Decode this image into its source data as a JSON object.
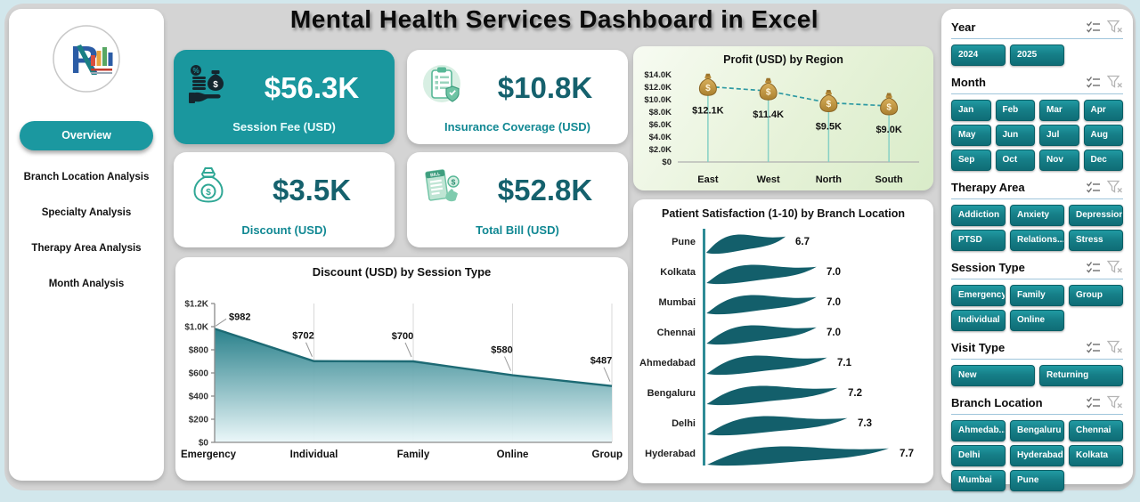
{
  "title": "Mental Health Services Dashboard in Excel",
  "sidebar": {
    "logo": "rk-analytics-logo",
    "nav": [
      {
        "label": "Overview",
        "active": true
      },
      {
        "label": "Branch Location Analysis",
        "active": false
      },
      {
        "label": "Specialty Analysis",
        "active": false
      },
      {
        "label": "Therapy Area Analysis",
        "active": false
      },
      {
        "label": "Month Analysis",
        "active": false
      }
    ]
  },
  "kpis": [
    {
      "value": "$56.3K",
      "label": "Session Fee (USD)",
      "icon": "hand-money-icon",
      "variant": "teal"
    },
    {
      "value": "$10.8K",
      "label": "Insurance Coverage (USD)",
      "icon": "insurance-clipboard-icon",
      "variant": "white"
    },
    {
      "value": "$3.5K",
      "label": "Discount (USD)",
      "icon": "money-bag-outline-icon",
      "variant": "white"
    },
    {
      "value": "$52.8K",
      "label": "Total Bill (USD)",
      "icon": "bill-receipt-icon",
      "variant": "white"
    }
  ],
  "chart_data": [
    {
      "id": "discount_by_session_type",
      "type": "area",
      "title": "Discount (USD) by Session Type",
      "categories": [
        "Emergency",
        "Individual",
        "Family",
        "Online",
        "Group"
      ],
      "values": [
        982,
        702,
        700,
        580,
        487
      ],
      "data_labels": [
        "$982",
        "$702",
        "$700",
        "$580",
        "$487"
      ],
      "y_ticks": [
        "$0",
        "$200",
        "$400",
        "$600",
        "$800",
        "$1.0K",
        "$1.2K"
      ],
      "ylim": [
        0,
        1200
      ],
      "grid": "vertical"
    },
    {
      "id": "profit_by_region",
      "type": "line",
      "title": "Profit (USD) by Region",
      "categories": [
        "East",
        "West",
        "North",
        "South"
      ],
      "values": [
        12100,
        11400,
        9500,
        9000
      ],
      "data_labels": [
        "$12.1K",
        "$11.4K",
        "$9.5K",
        "$9.0K"
      ],
      "y_ticks": [
        "$0",
        "$2.0K",
        "$4.0K",
        "$6.0K",
        "$8.0K",
        "$10.0K",
        "$12.0K",
        "$14.0K"
      ],
      "ylim": [
        0,
        14000
      ],
      "line_style": "dashed",
      "marker": "money-bag-icon"
    },
    {
      "id": "satisfaction_by_branch",
      "type": "bar",
      "orientation": "horizontal",
      "bar_shape": "wave",
      "title": "Patient Satisfaction (1-10) by Branch Location",
      "categories": [
        "Pune",
        "Kolkata",
        "Mumbai",
        "Chennai",
        "Ahmedabad",
        "Bengaluru",
        "Delhi",
        "Hyderabad"
      ],
      "values": [
        6.7,
        7.0,
        7.0,
        7.0,
        7.1,
        7.2,
        7.3,
        7.7
      ],
      "data_labels": [
        "6.7",
        "7.0",
        "7.0",
        "7.0",
        "7.1",
        "7.2",
        "7.3",
        "7.7"
      ]
    }
  ],
  "slicers": [
    {
      "title": "Year",
      "columns": 3,
      "options": [
        "2024",
        "2025"
      ]
    },
    {
      "title": "Month",
      "columns": 4,
      "options": [
        "Jan",
        "Feb",
        "Mar",
        "Apr",
        "May",
        "Jun",
        "Jul",
        "Aug",
        "Sep",
        "Oct",
        "Nov",
        "Dec"
      ]
    },
    {
      "title": "Therapy Area",
      "columns": 3,
      "options": [
        "Addiction",
        "Anxiety",
        "Depression",
        "PTSD",
        "Relations...",
        "Stress"
      ]
    },
    {
      "title": "Session Type",
      "columns": 3,
      "options": [
        "Emergency",
        "Family",
        "Group",
        "Individual",
        "Online"
      ]
    },
    {
      "title": "Visit Type",
      "columns": 2,
      "options": [
        "New",
        "Returning"
      ]
    },
    {
      "title": "Branch Location",
      "columns": 3,
      "options": [
        "Ahmedab...",
        "Bengaluru",
        "Chennai",
        "Delhi",
        "Hyderabad",
        "Kolkata",
        "Mumbai",
        "Pune"
      ]
    }
  ],
  "colors": {
    "teal": "#1a979e",
    "teal_dark": "#0f6d76",
    "wave_fill": "#135f6b",
    "area_line": "#1d6a74",
    "dashed_line": "#2f9aa3",
    "drop_line": "#86d0c4",
    "money_bag": "#c59a45",
    "value_text": "#15616d",
    "panel_gray": "#d4d4d4",
    "outer_blue": "#d2e7ec"
  }
}
